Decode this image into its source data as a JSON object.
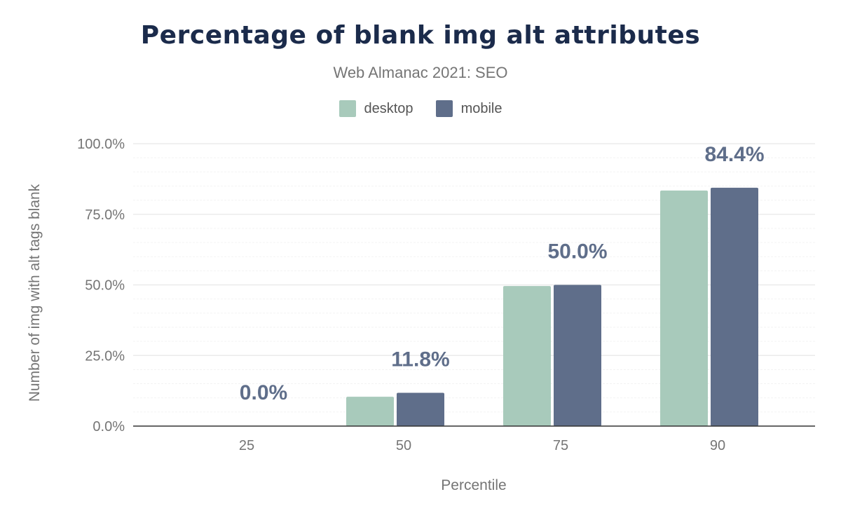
{
  "chart_data": {
    "type": "bar",
    "title": "Percentage of blank img alt attributes",
    "subtitle": "Web Almanac 2021: SEO",
    "xlabel": "Percentile",
    "ylabel": "Number of img with alt tags blank",
    "categories": [
      "25",
      "50",
      "75",
      "90"
    ],
    "series": [
      {
        "name": "desktop",
        "color": "#a8cabb",
        "values": [
          0.0,
          10.4,
          49.6,
          83.4
        ]
      },
      {
        "name": "mobile",
        "color": "#5f6e8a",
        "values": [
          0.0,
          11.8,
          50.0,
          84.4
        ]
      }
    ],
    "data_labels": {
      "series": "mobile",
      "labels": [
        "0.0%",
        "11.8%",
        "50.0%",
        "84.4%"
      ]
    },
    "ylim": [
      0,
      100
    ],
    "yticks": [
      "0.0%",
      "25.0%",
      "50.0%",
      "75.0%",
      "100.0%"
    ],
    "grid": true,
    "legend": "top-center"
  }
}
